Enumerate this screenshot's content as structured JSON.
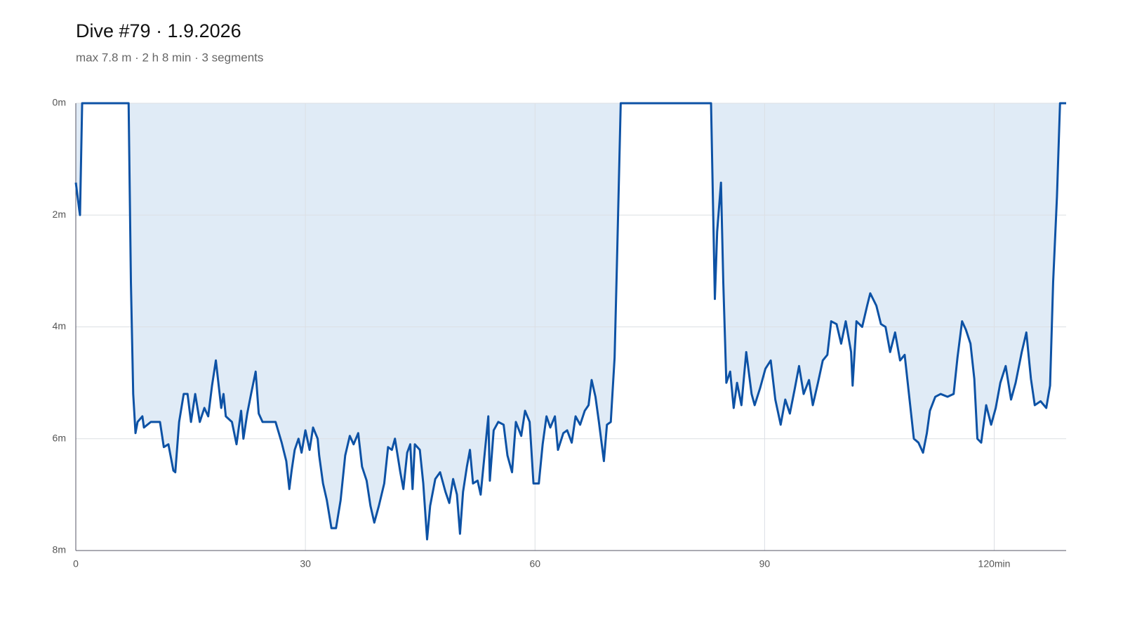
{
  "chart_data": {
    "type": "line",
    "title": "Dive #79 · 1.9.2026",
    "subtitle": "max 7.8 m · 2 h 8 min · 3 segments",
    "x": [
      0,
      0.46,
      0.55,
      0.83,
      6.9,
      7.2,
      7.5,
      7.8,
      8.07,
      8.7,
      8.9,
      9.8,
      11.0,
      11.5,
      12.1,
      12.75,
      13.0,
      13.5,
      14.1,
      14.6,
      15.05,
      15.6,
      16.2,
      16.8,
      17.3,
      17.8,
      18.3,
      19.0,
      19.3,
      19.6,
      20.4,
      21.0,
      21.6,
      21.9,
      22.4,
      22.9,
      23.5,
      23.9,
      24.4,
      25.3,
      26.1,
      26.9,
      27.5,
      27.9,
      28.2,
      28.6,
      29.1,
      29.5,
      30.0,
      30.55,
      31.0,
      31.6,
      31.8,
      32.3,
      32.8,
      33.4,
      34.0,
      34.6,
      35.2,
      35.8,
      36.3,
      36.9,
      37.4,
      38.0,
      38.5,
      39.0,
      39.6,
      40.3,
      40.8,
      41.3,
      41.7,
      42.4,
      42.8,
      43.3,
      43.7,
      44.0,
      44.3,
      44.95,
      45.4,
      45.9,
      46.3,
      46.97,
      47.6,
      48.3,
      48.8,
      49.3,
      49.8,
      50.2,
      50.6,
      51.1,
      51.5,
      51.9,
      52.5,
      52.9,
      53.4,
      53.9,
      54.1,
      54.6,
      55.2,
      55.9,
      56.4,
      57.0,
      57.5,
      58.2,
      58.7,
      59.3,
      59.8,
      60.5,
      61.0,
      61.5,
      62.0,
      62.6,
      63.0,
      63.7,
      64.2,
      64.8,
      65.3,
      65.9,
      66.5,
      67.0,
      67.4,
      67.9,
      68.35,
      69.0,
      69.4,
      69.9,
      70.4,
      70.7,
      71.2,
      83.0,
      83.5,
      83.8,
      84.3,
      84.6,
      85.0,
      85.5,
      85.96,
      86.4,
      86.97,
      87.6,
      88.3,
      88.7,
      89.4,
      90.1,
      90.8,
      91.4,
      92.1,
      92.7,
      93.3,
      93.95,
      94.5,
      95.1,
      95.8,
      96.3,
      96.97,
      97.6,
      98.2,
      98.7,
      99.4,
      100.0,
      100.6,
      101.3,
      101.5,
      102.0,
      102.75,
      103.4,
      103.8,
      104.6,
      105.2,
      105.8,
      106.4,
      107.05,
      107.7,
      108.3,
      108.9,
      109.5,
      110.1,
      110.7,
      111.2,
      111.6,
      112.3,
      113.0,
      113.9,
      114.7,
      115.2,
      115.8,
      116.3,
      116.9,
      117.4,
      117.8,
      118.3,
      118.95,
      119.6,
      120.2,
      120.8,
      121.5,
      122.2,
      122.8,
      123.6,
      124.2,
      124.8,
      125.3,
      126.06,
      126.8,
      127.3,
      127.7,
      128.2,
      128.6,
      129.4
    ],
    "values": [
      1.42,
      1.92,
      2.0,
      0,
      0,
      3.2,
      5.2,
      5.9,
      5.7,
      5.6,
      5.8,
      5.7,
      5.7,
      6.15,
      6.1,
      6.57,
      6.6,
      5.7,
      5.2,
      5.2,
      5.7,
      5.2,
      5.7,
      5.45,
      5.6,
      5.05,
      4.6,
      5.45,
      5.2,
      5.6,
      5.7,
      6.1,
      5.5,
      6.0,
      5.55,
      5.2,
      4.8,
      5.55,
      5.7,
      5.7,
      5.7,
      6.07,
      6.4,
      6.9,
      6.57,
      6.2,
      6.0,
      6.25,
      5.85,
      6.2,
      5.8,
      6.0,
      6.3,
      6.8,
      7.1,
      7.6,
      7.6,
      7.1,
      6.3,
      5.95,
      6.1,
      5.9,
      6.5,
      6.75,
      7.2,
      7.5,
      7.2,
      6.8,
      6.15,
      6.2,
      6.0,
      6.6,
      6.9,
      6.25,
      6.1,
      6.9,
      6.1,
      6.2,
      6.8,
      7.8,
      7.2,
      6.72,
      6.6,
      6.95,
      7.15,
      6.72,
      7.0,
      7.7,
      6.95,
      6.5,
      6.2,
      6.8,
      6.75,
      7.0,
      6.3,
      5.6,
      6.75,
      5.85,
      5.7,
      5.75,
      6.3,
      6.6,
      5.7,
      5.95,
      5.5,
      5.7,
      6.8,
      6.8,
      6.1,
      5.6,
      5.8,
      5.6,
      6.2,
      5.9,
      5.85,
      6.07,
      5.6,
      5.75,
      5.5,
      5.4,
      4.95,
      5.25,
      5.7,
      6.4,
      5.75,
      5.7,
      4.55,
      2.9,
      0,
      0,
      3.5,
      2.3,
      1.42,
      3.2,
      5.0,
      4.8,
      5.45,
      5.0,
      5.4,
      4.45,
      5.2,
      5.4,
      5.1,
      4.75,
      4.6,
      5.3,
      5.75,
      5.3,
      5.55,
      5.1,
      4.7,
      5.2,
      4.95,
      5.4,
      5.0,
      4.6,
      4.5,
      3.9,
      3.95,
      4.3,
      3.9,
      4.45,
      5.05,
      3.9,
      4.0,
      3.62,
      3.4,
      3.62,
      3.95,
      4.0,
      4.45,
      4.1,
      4.6,
      4.5,
      5.25,
      6.0,
      6.07,
      6.25,
      5.9,
      5.5,
      5.25,
      5.2,
      5.25,
      5.2,
      4.55,
      3.9,
      4.05,
      4.3,
      4.93,
      6.0,
      6.07,
      5.4,
      5.75,
      5.45,
      5.0,
      4.7,
      5.3,
      5.0,
      4.45,
      4.1,
      4.93,
      5.4,
      5.33,
      5.45,
      5.05,
      3.2,
      1.67,
      0,
      0
    ],
    "color": "#0d52a5",
    "fill_color": "#e0ebf6",
    "xlim": [
      0,
      129.4
    ],
    "xticks": [
      0,
      30,
      60,
      90,
      {
        "value": 120,
        "label": "120min"
      }
    ],
    "ylim": [
      0,
      8
    ],
    "y_inverted": true,
    "yticks": [
      {
        "value": 0,
        "label": "0m"
      },
      {
        "value": 2,
        "label": "2m"
      },
      {
        "value": 4,
        "label": "4m"
      },
      {
        "value": 6,
        "label": "6m"
      },
      {
        "value": 8,
        "label": "8m"
      }
    ],
    "grid": true
  }
}
